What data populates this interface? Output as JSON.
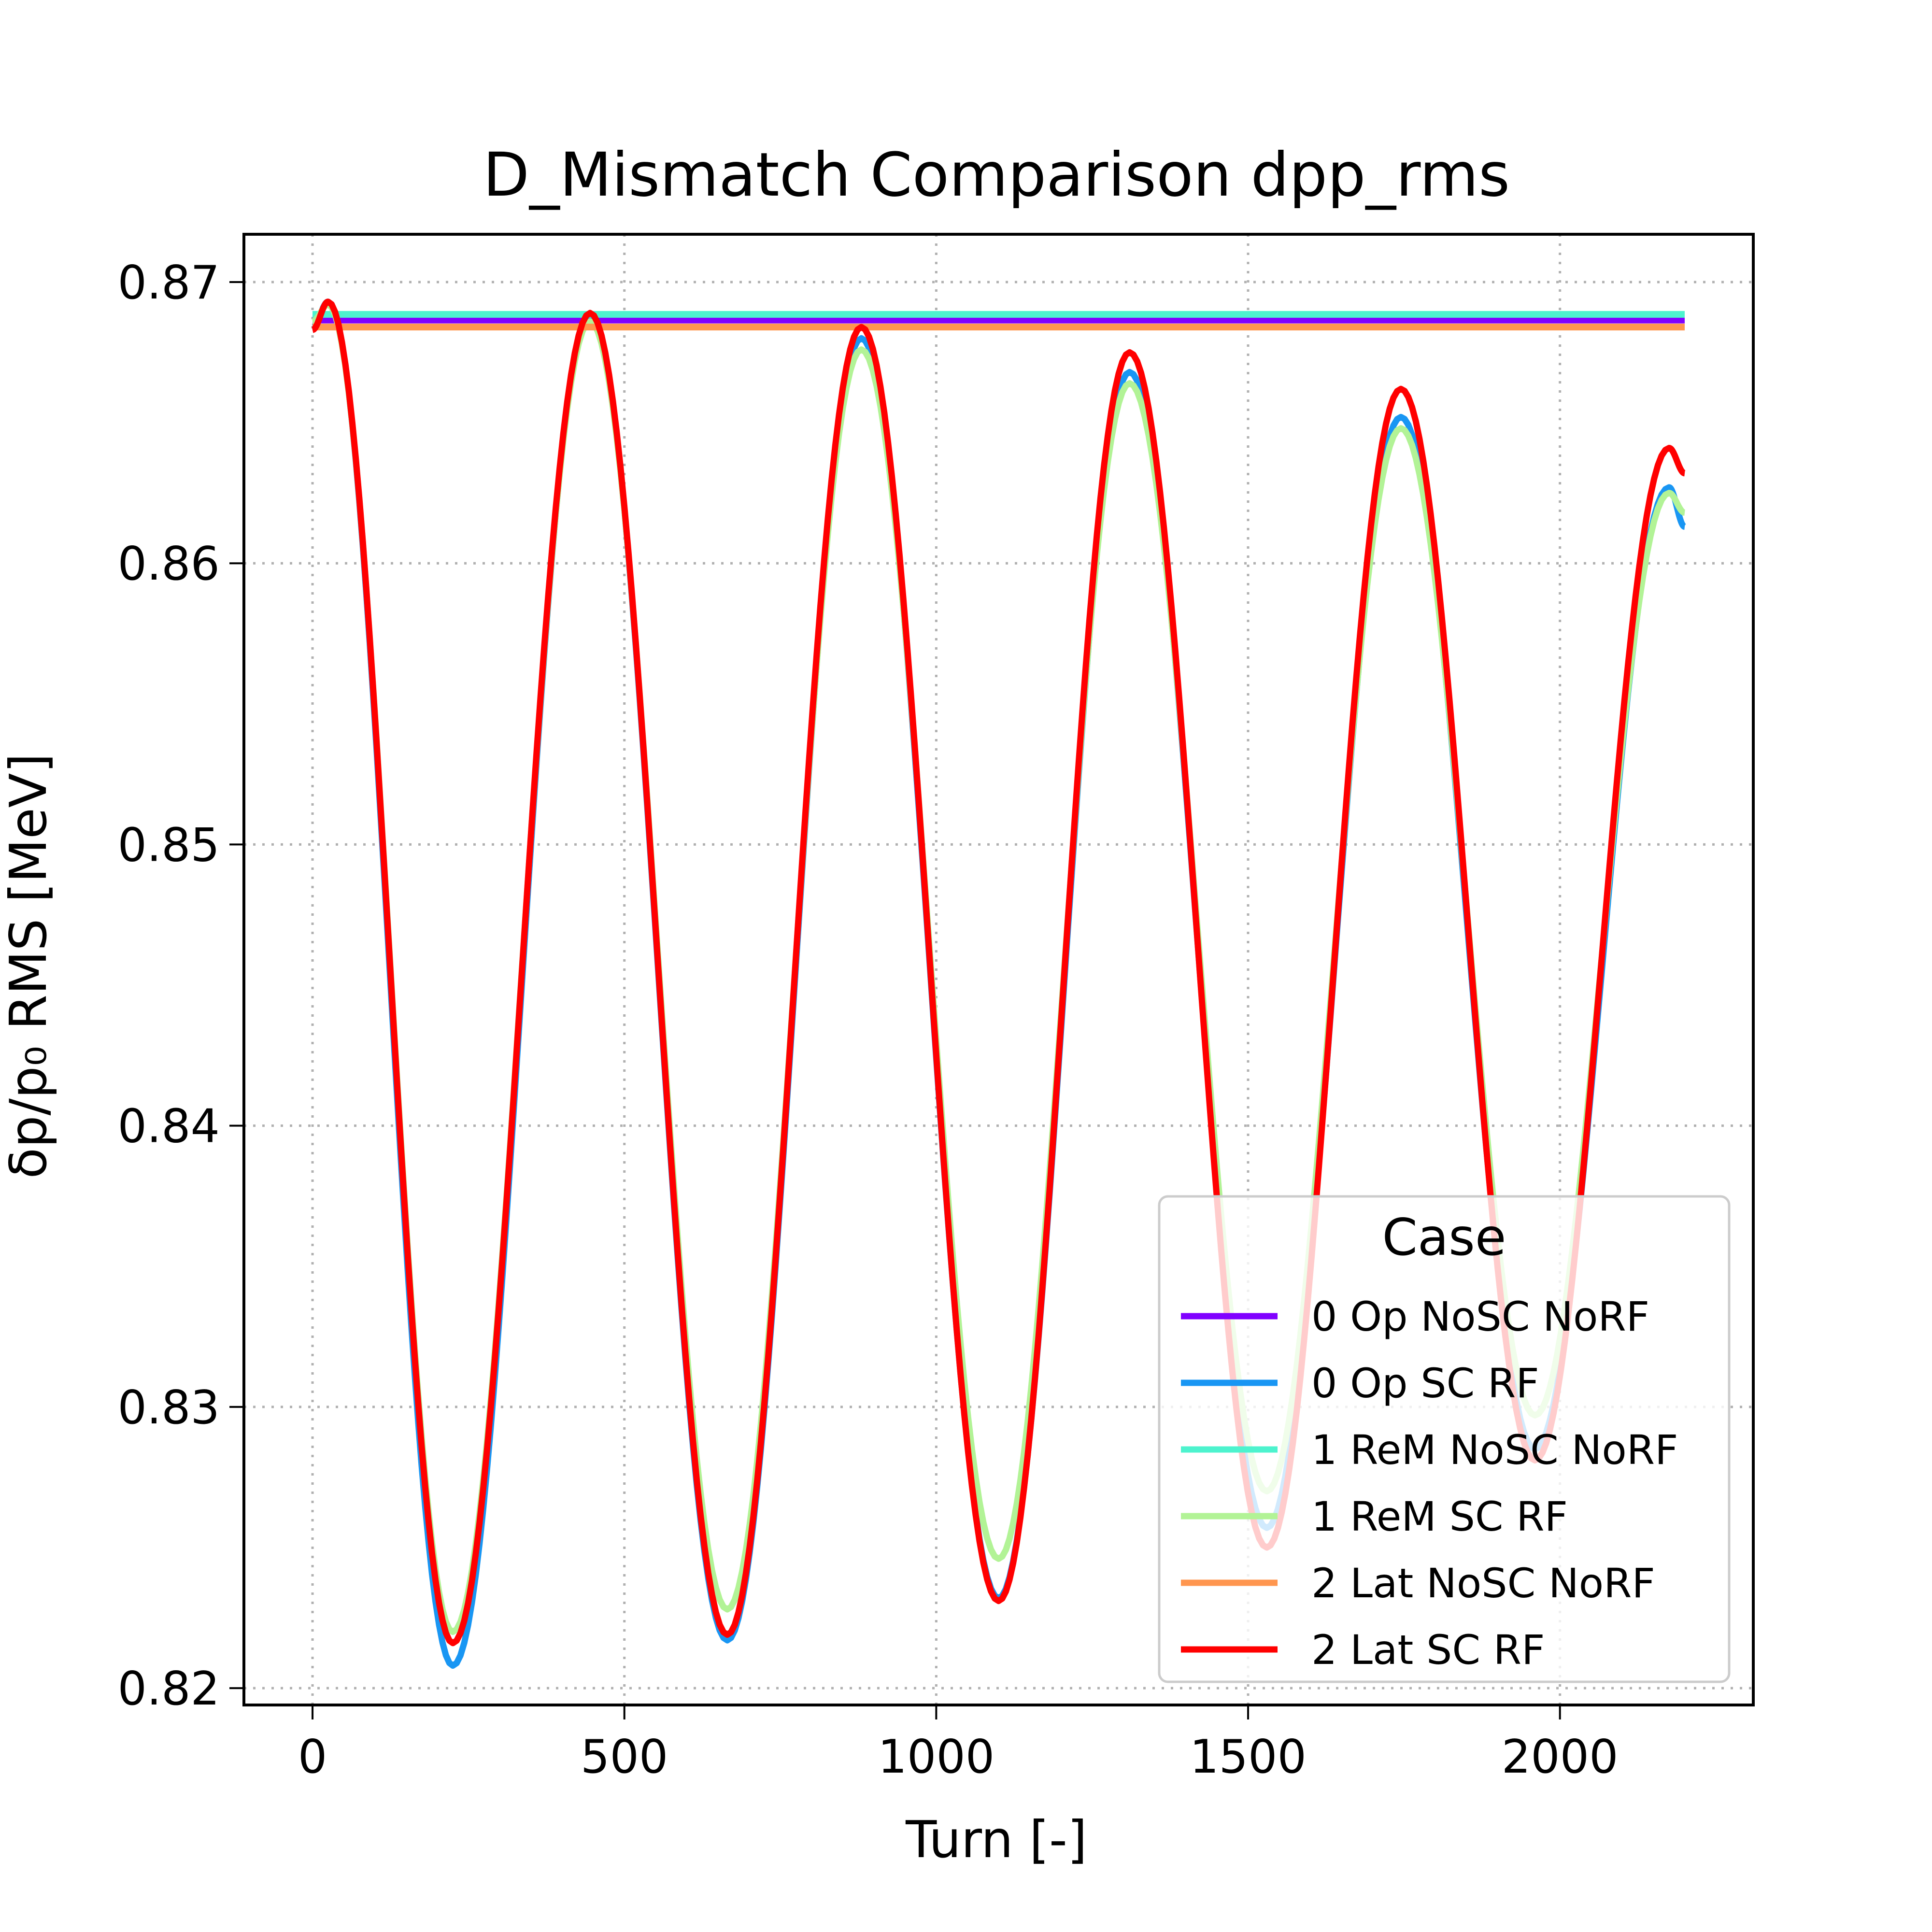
{
  "chart_data": {
    "type": "line",
    "title": "D_Mismatch Comparison dpp_rms",
    "xlabel": "Turn [-]",
    "ylabel": "δp/p₀ RMS [MeV]",
    "xlim": [
      -110,
      2310
    ],
    "ylim": [
      0.8194,
      0.8717
    ],
    "xticks": [
      "0",
      "500",
      "1000",
      "1500",
      "2000"
    ],
    "xtick_values": [
      0,
      500,
      1000,
      1500,
      2000
    ],
    "yticks": [
      "0.82",
      "0.83",
      "0.84",
      "0.85",
      "0.86",
      "0.87"
    ],
    "ytick_values": [
      0.82,
      0.83,
      0.84,
      0.85,
      0.86,
      0.87
    ],
    "grid": true,
    "legend": {
      "title": "Case",
      "position": "lower-right"
    },
    "series": [
      {
        "name": "0 Op NoSC NoRF",
        "color": "#8000ff",
        "x": [
          0,
          2200
        ],
        "y": [
          0.86865,
          0.86865
        ]
      },
      {
        "name": "0 Op SC RF",
        "color": "#1996f3",
        "x": [
          0,
          25,
          225,
          445,
          665,
          880,
          1100,
          1310,
          1530,
          1745,
          1960,
          2175,
          2200
        ],
        "y": [
          0.8684,
          0.8693,
          0.8208,
          0.8688,
          0.8217,
          0.868,
          0.8232,
          0.8668,
          0.8257,
          0.8652,
          0.8285,
          0.8627,
          0.8613
        ]
      },
      {
        "name": "1 ReM NoSC NoRF",
        "color": "#4df3ce",
        "x": [
          0,
          2200
        ],
        "y": [
          0.86885,
          0.86885
        ]
      },
      {
        "name": "1 ReM SC RF",
        "color": "#b2f396",
        "x": [
          0,
          25,
          225,
          445,
          665,
          880,
          1100,
          1310,
          1530,
          1745,
          1960,
          2175,
          2200
        ],
        "y": [
          0.8686,
          0.8692,
          0.822,
          0.8686,
          0.8228,
          0.8676,
          0.8246,
          0.8664,
          0.827,
          0.8648,
          0.8297,
          0.8625,
          0.8618
        ]
      },
      {
        "name": "2 Lat NoSC NoRF",
        "color": "#ff964f",
        "x": [
          0,
          2200
        ],
        "y": [
          0.8684,
          0.8684
        ]
      },
      {
        "name": "2 Lat SC RF",
        "color": "#ff0000",
        "x": [
          0,
          25,
          225,
          445,
          665,
          880,
          1100,
          1310,
          1530,
          1745,
          1960,
          2175,
          2200
        ],
        "y": [
          0.8683,
          0.8693,
          0.8216,
          0.8689,
          0.8219,
          0.8684,
          0.8231,
          0.8675,
          0.825,
          0.8662,
          0.8281,
          0.8641,
          0.8632
        ]
      }
    ]
  }
}
